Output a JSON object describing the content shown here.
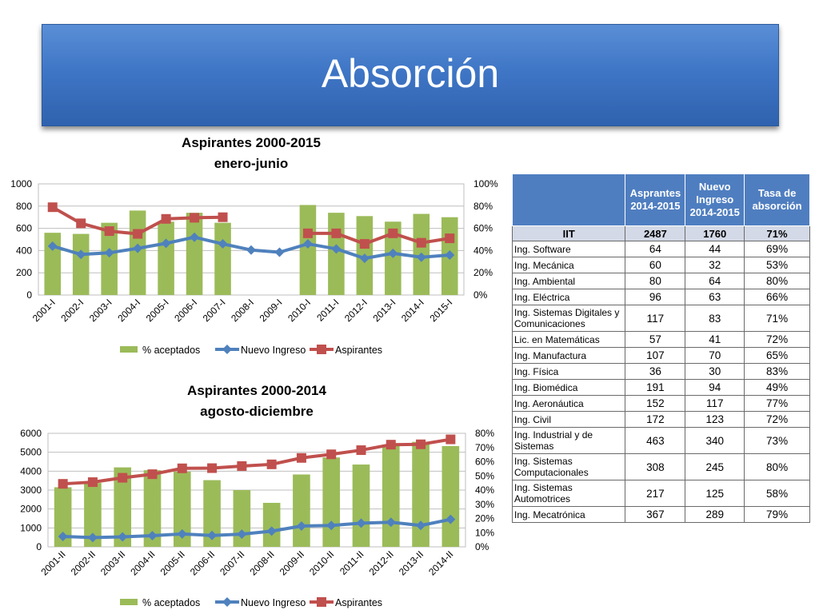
{
  "title": "Absorción",
  "chart_data": [
    {
      "type": "bar",
      "title": [
        "Aspirantes 2000-2015",
        "enero-junio"
      ],
      "categories": [
        "2001-I",
        "2002-I",
        "2003-I",
        "2004-I",
        "2005-I",
        "2006-I",
        "2007-I",
        "2008-I",
        "2009-I",
        "2010-I",
        "2011-I",
        "2012-I",
        "2013-I",
        "2014-I",
        "2015-I"
      ],
      "ylim_left": [
        0,
        1000
      ],
      "yticks_left": [
        "0",
        "200",
        "400",
        "600",
        "800",
        "1000"
      ],
      "ylim_right": [
        0,
        100
      ],
      "yticks_right": [
        "0%",
        "20%",
        "40%",
        "60%",
        "80%",
        "100%"
      ],
      "grid": true,
      "legend": "bottom",
      "series": [
        {
          "name": "% aceptados",
          "kind": "bar",
          "axis": "right",
          "color": "#9bbb59",
          "values": [
            56,
            55,
            65,
            76,
            66,
            74,
            65,
            null,
            null,
            81,
            74,
            71,
            66,
            73,
            70
          ]
        },
        {
          "name": "Nuevo Ingreso",
          "kind": "line",
          "axis": "left",
          "color": "#4f81bd",
          "values": [
            440,
            365,
            380,
            420,
            465,
            520,
            460,
            405,
            385,
            460,
            415,
            330,
            375,
            340,
            360
          ]
        },
        {
          "name": "Aspirantes",
          "kind": "line",
          "axis": "left",
          "color": "#c0504d",
          "values": [
            790,
            645,
            575,
            550,
            685,
            695,
            700,
            null,
            null,
            555,
            555,
            460,
            555,
            470,
            510
          ]
        }
      ]
    },
    {
      "type": "bar",
      "title": [
        "Aspirantes 2000-2014",
        "agosto-diciembre"
      ],
      "categories": [
        "2001-II",
        "2002-II",
        "2003-II",
        "2004-II",
        "2005-II",
        "2006-II",
        "2007-II",
        "2008-II",
        "2009-II",
        "2010-II",
        "2011-II",
        "2012-II",
        "2013-II",
        "2014-II"
      ],
      "ylim_left": [
        0,
        6000
      ],
      "yticks_left": [
        "0",
        "1000",
        "2000",
        "3000",
        "4000",
        "5000",
        "6000"
      ],
      "ylim_right": [
        0,
        80
      ],
      "yticks_right": [
        "0%",
        "10%",
        "20%",
        "30%",
        "40%",
        "50%",
        "60%",
        "70%",
        "80%"
      ],
      "grid": true,
      "legend": "bottom",
      "series": [
        {
          "name": "% aceptados",
          "kind": "bar",
          "axis": "right",
          "color": "#9bbb59",
          "values": [
            42,
            45,
            56,
            54,
            53,
            47,
            40,
            31,
            51,
            63,
            58,
            71,
            74,
            71
          ]
        },
        {
          "name": "Nuevo Ingreso",
          "kind": "line",
          "axis": "left",
          "color": "#4f81bd",
          "values": [
            550,
            490,
            530,
            590,
            680,
            600,
            670,
            830,
            1100,
            1130,
            1250,
            1300,
            1130,
            1450
          ]
        },
        {
          "name": "Aspirantes",
          "kind": "line",
          "axis": "left",
          "color": "#c0504d",
          "values": [
            3330,
            3420,
            3650,
            3840,
            4150,
            4160,
            4270,
            4360,
            4700,
            4890,
            5110,
            5400,
            5420,
            5680
          ]
        }
      ]
    }
  ],
  "table": {
    "headers": [
      "",
      "Asprantes 2014-2015",
      "Nuevo Ingreso 2014-2015",
      "Tasa de absorción"
    ],
    "total": [
      "IIT",
      "2487",
      "1760",
      "71%"
    ],
    "rows": [
      [
        "Ing. Software",
        "64",
        "44",
        "69%"
      ],
      [
        "Ing. Mecánica",
        "60",
        "32",
        "53%"
      ],
      [
        "Ing.  Ambiental",
        "80",
        "64",
        "80%"
      ],
      [
        "Ing. Eléctrica",
        "96",
        "63",
        "66%"
      ],
      [
        "Ing. Sistemas Digitales y Comunicaciones",
        "117",
        "83",
        "71%"
      ],
      [
        "Lic. en Matemáticas",
        "57",
        "41",
        "72%"
      ],
      [
        "Ing. Manufactura",
        "107",
        "70",
        "65%"
      ],
      [
        "Ing. Física",
        "36",
        "30",
        "83%"
      ],
      [
        "Ing. Biomédica",
        "191",
        "94",
        "49%"
      ],
      [
        "Ing. Aeronáutica",
        "152",
        "117",
        "77%"
      ],
      [
        "Ing. Civil",
        "172",
        "123",
        "72%"
      ],
      [
        "Ing. Industrial y de Sistemas",
        "463",
        "340",
        "73%"
      ],
      [
        "Ing. Sistemas Computacionales",
        "308",
        "245",
        "80%"
      ],
      [
        "Ing. Sistemas Automotrices",
        "217",
        "125",
        "58%"
      ],
      [
        "Ing. Mecatrónica",
        "367",
        "289",
        "79%"
      ]
    ]
  }
}
